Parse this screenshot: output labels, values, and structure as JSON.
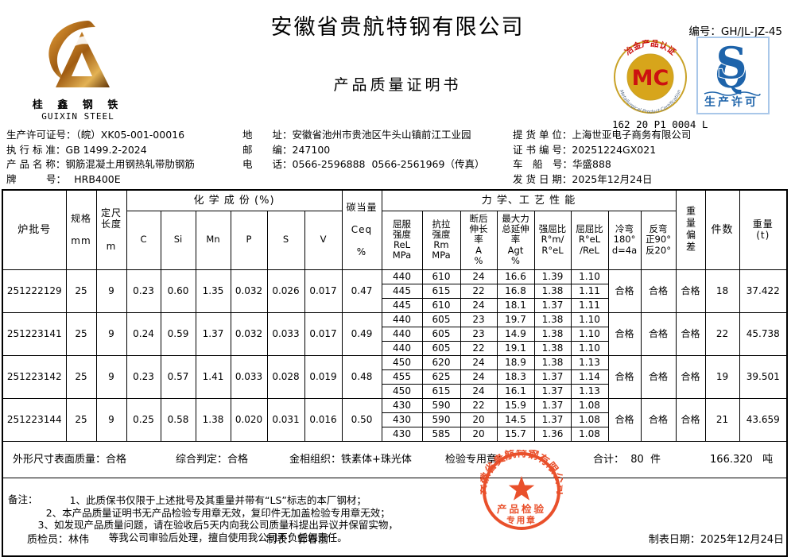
{
  "header": {
    "company": "安徽省贵航特钢有限公司",
    "doc_title": "产品质量证明书",
    "serial_label": "编号：",
    "serial": "GH/JL-JZ-45",
    "logo": {
      "cn": "桂 鑫 钢 铁",
      "en": "GUIXIN STEEL"
    },
    "mc_badge": {
      "center": "MC",
      "arc_top": "冶金产品认证",
      "arc_bottom": "Metallurgical Product Certification",
      "code": "162 20 P1 0004 L"
    },
    "qs_badge": {
      "caption": "生产许可"
    }
  },
  "colors": {
    "stamp_red": "#e8431c",
    "mc_gold": "#d7a51b",
    "mc_red": "#cc1111",
    "qs_blue": "#1d63aa",
    "logo_gold": "#b57317"
  },
  "meta": {
    "left": [
      {
        "label": "生产许可证号：",
        "value": "（皖）XK05-001-00016"
      },
      {
        "label": "执 行 标 准：",
        "value": "GB 1499.2-2024"
      },
      {
        "label": "产 品 名 称：",
        "value": "钢筋混凝土用钢热轧带肋钢筋"
      },
      {
        "label": "牌　　　号：",
        "value": "　 HRB400E"
      }
    ],
    "center": [
      {
        "label": "地　　址：",
        "value": "安徽省池州市贵池区牛头山镇前江工业园"
      },
      {
        "label": "邮　　编：",
        "value": "247100"
      },
      {
        "label": "电　　话：",
        "value": "0566-2596888  0566-2561969（传真）"
      }
    ],
    "right": [
      {
        "label": "提 货 单 位：",
        "value": "上海世亚电子商务有限公司"
      },
      {
        "label": "证 书 编 号：",
        "value": "20251224GX021"
      },
      {
        "label": "车　船　号：",
        "value": "华盛888"
      },
      {
        "label": "发 货 日 期：",
        "value": "2025年12月24日"
      }
    ]
  },
  "table": {
    "headers": {
      "heat": "炉批号",
      "spec": "规格\n\nmm",
      "len": "定尺\n长度\n\nm",
      "chem_group": "化 学 成 份 (%)",
      "c": "C",
      "si": "Si",
      "mn": "Mn",
      "p": "P",
      "s": "S",
      "v": "V",
      "ceq": "碳当量\n\nCeq\n\n%",
      "mech_group": "力 学、工 艺 性 能",
      "rel": "屈服\n强度\nReL\nMPa",
      "rm": "抗拉\n强度\nRm\nMPa",
      "a": "断后\n伸长\n率\nA\n%",
      "agt": "最大力\n总延伸\n率\nAgt\n%",
      "ratio1": "强屈比\nR°m/\nR°eL",
      "ratio2": "屈屈比\nR°eL\n/ReL",
      "cold": "冷弯\n180°\nd=4a",
      "rev": "反弯\n正90°\n反20°",
      "wdev": "重量偏差",
      "pieces": "件数",
      "weight": "重量\n(t)"
    },
    "batches": [
      {
        "heat_no": "251222129",
        "spec": "25",
        "length": "9",
        "C": "0.23",
        "Si": "0.60",
        "Mn": "1.35",
        "P": "0.032",
        "S": "0.026",
        "V": "0.017",
        "Ceq": "0.47",
        "mech": [
          [
            "440",
            "610",
            "24",
            "16.6",
            "1.39",
            "1.10"
          ],
          [
            "445",
            "615",
            "22",
            "16.8",
            "1.38",
            "1.11"
          ],
          [
            "445",
            "610",
            "24",
            "18.1",
            "1.37",
            "1.11"
          ]
        ],
        "cold_bend": "合格",
        "reverse_bend": "合格",
        "weight_dev": "合格",
        "pieces": "18",
        "weight": "37.422"
      },
      {
        "heat_no": "251223141",
        "spec": "25",
        "length": "9",
        "C": "0.24",
        "Si": "0.59",
        "Mn": "1.37",
        "P": "0.032",
        "S": "0.033",
        "V": "0.017",
        "Ceq": "0.49",
        "mech": [
          [
            "440",
            "605",
            "23",
            "19.7",
            "1.38",
            "1.10"
          ],
          [
            "440",
            "605",
            "23",
            "14.9",
            "1.38",
            "1.10"
          ],
          [
            "440",
            "605",
            "22",
            "19.1",
            "1.38",
            "1.10"
          ]
        ],
        "cold_bend": "合格",
        "reverse_bend": "合格",
        "weight_dev": "合格",
        "pieces": "22",
        "weight": "45.738"
      },
      {
        "heat_no": "251223142",
        "spec": "25",
        "length": "9",
        "C": "0.23",
        "Si": "0.57",
        "Mn": "1.41",
        "P": "0.033",
        "S": "0.028",
        "V": "0.019",
        "Ceq": "0.48",
        "mech": [
          [
            "450",
            "620",
            "24",
            "18.9",
            "1.38",
            "1.13"
          ],
          [
            "455",
            "625",
            "24",
            "18.3",
            "1.37",
            "1.14"
          ],
          [
            "450",
            "615",
            "24",
            "16.1",
            "1.37",
            "1.13"
          ]
        ],
        "cold_bend": "合格",
        "reverse_bend": "合格",
        "weight_dev": "合格",
        "pieces": "19",
        "weight": "39.501"
      },
      {
        "heat_no": "251223144",
        "spec": "25",
        "length": "9",
        "C": "0.25",
        "Si": "0.58",
        "Mn": "1.38",
        "P": "0.020",
        "S": "0.031",
        "V": "0.016",
        "Ceq": "0.50",
        "mech": [
          [
            "430",
            "590",
            "22",
            "15.9",
            "1.37",
            "1.08"
          ],
          [
            "430",
            "590",
            "20",
            "14.5",
            "1.37",
            "1.08"
          ],
          [
            "430",
            "585",
            "20",
            "15.7",
            "1.36",
            "1.08"
          ]
        ],
        "cold_bend": "合格",
        "reverse_bend": "合格",
        "weight_dev": "合格",
        "pieces": "21",
        "weight": "43.659"
      }
    ]
  },
  "summary": {
    "size_surface": "外形尺寸表面质量：合格",
    "overall": "综合判定：合格",
    "metallographic": "金相组织：铁素体+珠光体",
    "stamp_label": "检验专用章：",
    "total": "合计：  80  件",
    "total_weight": "166.320   吨"
  },
  "remarks": {
    "label": "备注：",
    "lines": "1、此质保书仅限于上述批号及其重量并带有“LS”标志的本厂钢材；\n2、本产品质量证明书无产品检验专用章无效，复印件无加盖检验专用章无效；\n3、如发现产品质量问题，请在验收后5天内向我公司质量科提出异议并保留实物，\n　　等我公司审验后处理，擅自使用我公司不负任何责任。"
  },
  "stamp": {
    "company": "安徽省贵航特钢有限公司",
    "line1": "产品检验",
    "line2": "专用章"
  },
  "footer": {
    "inspector": "质检员：林伟",
    "preparer": "制表：郭春丽",
    "date": "制表日期：2025年12月24日"
  }
}
